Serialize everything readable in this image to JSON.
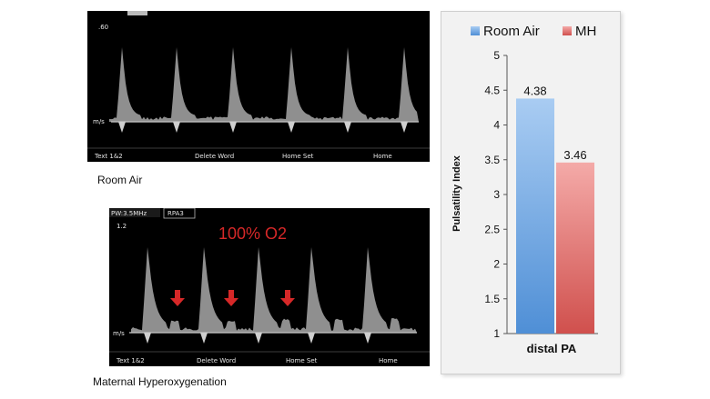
{
  "panel_top": {
    "scale_label": ".60",
    "unit_label": "m/s",
    "footer": [
      "Text 1&2",
      "Delete Word",
      "Home Set",
      "Home"
    ]
  },
  "panel_bottom": {
    "header_left": "PW:3.5MHz",
    "header_label": "RPA3",
    "scale_label": "1.2",
    "unit_label": "m/s",
    "overlay_text": "100% O2",
    "footer": [
      "Text 1&2",
      "Delete Word",
      "Home Set",
      "Home"
    ]
  },
  "captions": {
    "top": "Room Air",
    "bottom": "Maternal Hyperoxygenation"
  },
  "colors": {
    "room_air": "#5b9bd5",
    "mh": "#e06666",
    "overlay_text": "#d62828",
    "arrow": "#d62828"
  },
  "chart_data": {
    "type": "bar",
    "categories": [
      "distal PA"
    ],
    "series": [
      {
        "name": "Room Air",
        "values": [
          4.38
        ]
      },
      {
        "name": "MH",
        "values": [
          3.46
        ]
      }
    ],
    "data_labels": [
      "4.38",
      "3.46"
    ],
    "ylabel": "Pulsatility Index",
    "ylim": [
      1,
      5
    ],
    "yticks": [
      "1",
      "1.5",
      "2",
      "2.5",
      "3",
      "3.5",
      "4",
      "4.5",
      "5"
    ],
    "legend_position": "top",
    "grid": false
  }
}
